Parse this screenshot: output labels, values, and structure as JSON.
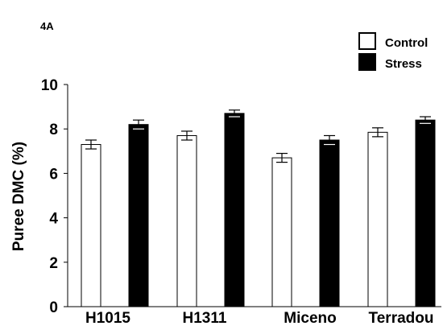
{
  "panel_label": "4A",
  "chart_data": {
    "type": "bar",
    "title": "",
    "xlabel": "",
    "ylabel": "Puree DMC (%)",
    "ylim": [
      0,
      10
    ],
    "yticks": [
      "0",
      "2",
      "4",
      "6",
      "8",
      "10"
    ],
    "categories": [
      "H1015",
      "H1311",
      "Miceno",
      "Terradou"
    ],
    "series": [
      {
        "name": "Control",
        "color": "#ffffff",
        "values": [
          7.3,
          7.7,
          6.7,
          7.85
        ],
        "errors": [
          0.2,
          0.2,
          0.2,
          0.2
        ]
      },
      {
        "name": "Stress",
        "color": "#000000",
        "values": [
          8.2,
          8.7,
          7.5,
          8.4
        ],
        "errors": [
          0.2,
          0.15,
          0.2,
          0.15
        ]
      }
    ],
    "legend": {
      "position": "top-right",
      "entries": [
        "Control",
        "Stress"
      ]
    },
    "grid": false
  }
}
